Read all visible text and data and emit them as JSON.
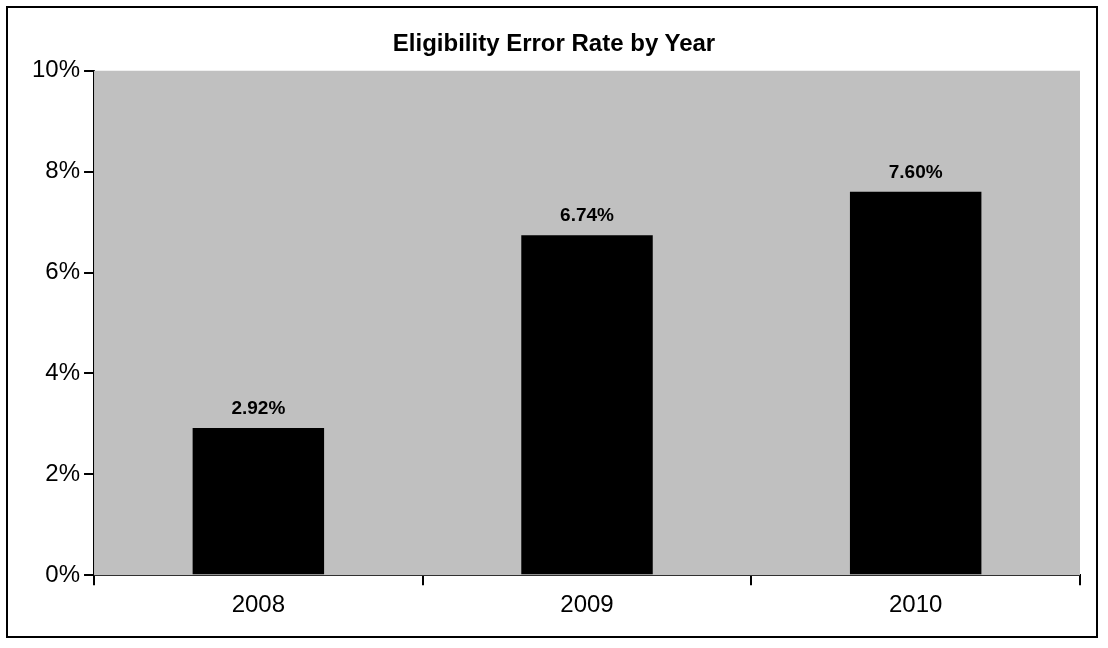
{
  "chart_data": {
    "type": "bar",
    "title": "Eligibility Error Rate by Year",
    "categories": [
      "2008",
      "2009",
      "2010"
    ],
    "values": [
      2.92,
      6.74,
      7.6
    ],
    "value_labels": [
      "2.92%",
      "6.74%",
      "7.60%"
    ],
    "color": "#000000",
    "ylim": [
      0,
      10
    ],
    "yticks": [
      {
        "value": 0,
        "label": "0%"
      },
      {
        "value": 2,
        "label": "2%"
      },
      {
        "value": 4,
        "label": "4%"
      },
      {
        "value": 6,
        "label": "6%"
      },
      {
        "value": 8,
        "label": "8%"
      },
      {
        "value": 10,
        "label": "10%"
      }
    ],
    "grid": false
  }
}
